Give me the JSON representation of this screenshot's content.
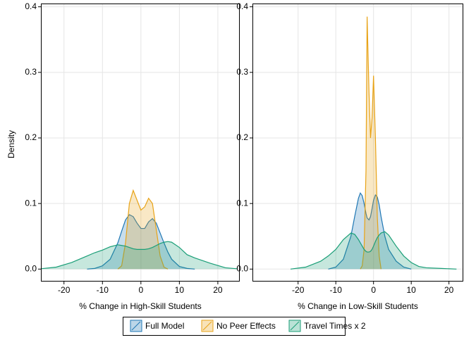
{
  "chart_data": [
    {
      "type": "area",
      "xlabel": "% Change in High-Skill Students",
      "ylabel": "Density",
      "x": [
        -26,
        -22,
        -18,
        -14,
        -12,
        -10,
        -8,
        -6,
        -5,
        -4,
        -3,
        -2,
        -1,
        0,
        1,
        2,
        3,
        4,
        5,
        6,
        7,
        8,
        10,
        12,
        14,
        16,
        18,
        22,
        25
      ],
      "series": [
        {
          "name": "Full Model",
          "color": "#1f77b4",
          "values": [
            null,
            null,
            null,
            0,
            0.001,
            0.005,
            0.015,
            0.04,
            0.058,
            0.075,
            0.083,
            0.08,
            0.07,
            0.062,
            0.062,
            0.072,
            0.077,
            0.07,
            0.055,
            0.04,
            0.026,
            0.015,
            0.004,
            0.001,
            0,
            null,
            null,
            null,
            null
          ]
        },
        {
          "name": "No Peer Effects",
          "color": "#e8a317",
          "values": [
            null,
            null,
            null,
            null,
            null,
            null,
            null,
            0,
            0.005,
            0.04,
            0.1,
            0.12,
            0.105,
            0.09,
            0.095,
            0.108,
            0.1,
            0.06,
            0.02,
            0.003,
            0,
            null,
            null,
            null,
            null,
            null,
            null,
            null,
            null
          ]
        },
        {
          "name": "Travel Times x 2",
          "color": "#1a9e77",
          "values": [
            0.0005,
            0.003,
            0.01,
            0.02,
            0.025,
            0.029,
            0.034,
            0.037,
            0.036,
            0.035,
            0.033,
            0.031,
            0.03,
            0.03,
            0.03,
            0.031,
            0.033,
            0.036,
            0.039,
            0.041,
            0.042,
            0.041,
            0.033,
            0.022,
            0.017,
            0.013,
            0.009,
            0.002,
            0.0005
          ]
        }
      ],
      "xlim": [
        -26,
        25.7
      ],
      "ylim": [
        -0.019,
        0.405
      ],
      "xticks": [
        -20,
        -10,
        0,
        10,
        20
      ],
      "yticks": [
        {
          "value": 0,
          "label": "0.0"
        },
        0.1,
        0.2,
        0.3,
        0.4
      ],
      "grid": true
    },
    {
      "type": "area",
      "xlabel": "% Change in Low-Skill Students",
      "x": [
        -22,
        -18,
        -14,
        -12,
        -10,
        -8,
        -6,
        -5,
        -4,
        -3.5,
        -3,
        -2.5,
        -2,
        -1.7,
        -1.2,
        -0.8,
        -0.4,
        0,
        0.5,
        1,
        1.5,
        2,
        3,
        4,
        6,
        8,
        10,
        12,
        14,
        18,
        22
      ],
      "series": [
        {
          "color": "#1f77b4",
          "values": [
            null,
            null,
            null,
            0,
            0.003,
            0.015,
            0.05,
            0.08,
            0.108,
            0.116,
            0.112,
            0.1,
            0.085,
            0.078,
            0.075,
            0.08,
            0.092,
            0.105,
            0.113,
            0.11,
            0.098,
            0.08,
            0.05,
            0.03,
            0.012,
            0.003,
            0,
            null,
            null,
            null,
            null
          ]
        },
        {
          "color": "#e8a317",
          "values": [
            null,
            null,
            null,
            null,
            null,
            null,
            null,
            null,
            null,
            0,
            0.005,
            0.03,
            0.15,
            0.385,
            0.27,
            0.2,
            0.23,
            0.295,
            0.2,
            0.08,
            0.02,
            0,
            null,
            null,
            null,
            null,
            null,
            null,
            null,
            null,
            null
          ]
        },
        {
          "color": "#1a9e77",
          "values": [
            0,
            0.003,
            0.012,
            0.02,
            0.03,
            0.045,
            0.055,
            0.053,
            0.045,
            0.04,
            0.035,
            0.03,
            0.027,
            0.026,
            0.026,
            0.027,
            0.03,
            0.035,
            0.042,
            0.048,
            0.052,
            0.055,
            0.057,
            0.052,
            0.035,
            0.02,
            0.01,
            0.004,
            0.002,
            0.001,
            0
          ]
        }
      ],
      "xlim": [
        -32.1,
        23.8
      ],
      "ylim": [
        -0.019,
        0.405
      ],
      "xticks": [
        -20,
        -10,
        0,
        10,
        20
      ],
      "yticks": [
        {
          "value": 0,
          "label": "0.0"
        },
        0.1,
        0.2,
        0.3,
        0.4
      ],
      "grid": true
    }
  ]
}
